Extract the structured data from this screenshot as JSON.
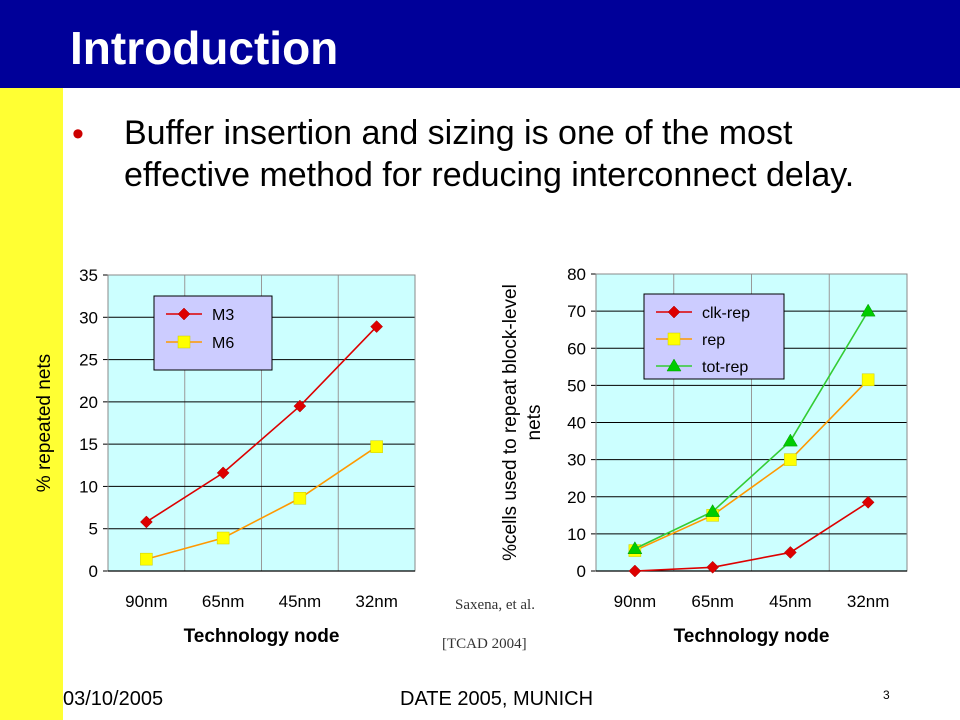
{
  "slide": {
    "title": "Introduction",
    "bullet": "Buffer insertion and sizing is one of the most effective method for reducing interconnect delay.",
    "citation_author": "Saxena, et al.",
    "citation_source": "[TCAD 2004]",
    "footer_date": "03/10/2005",
    "footer_event": "DATE 2005, MUNICH",
    "page_number": "3",
    "colors": {
      "header": "#000099",
      "sidebar": "#ffff33",
      "plot_bg": "#ccffff",
      "bullet": "#cc0000"
    }
  },
  "chart_data": [
    {
      "type": "line",
      "categories": [
        "90nm",
        "65nm",
        "45nm",
        "32nm"
      ],
      "xlabel": "Technology node",
      "ylabel": "% repeated nets",
      "ylim": [
        0,
        35
      ],
      "yticks": [
        0,
        5,
        10,
        15,
        20,
        25,
        30,
        35
      ],
      "grid": true,
      "legend": "top-left",
      "series": [
        {
          "name": "M3",
          "values": [
            5.8,
            11.6,
            19.5,
            28.9
          ],
          "color": "#dd0000",
          "line_color": "#dd0000",
          "marker": "diamond"
        },
        {
          "name": "M6",
          "values": [
            1.4,
            3.9,
            8.6,
            14.7
          ],
          "color": "#ffff00",
          "line_color": "#ff9900",
          "marker": "square"
        }
      ]
    },
    {
      "type": "line",
      "categories": [
        "90nm",
        "65nm",
        "45nm",
        "32nm"
      ],
      "xlabel": "Technology node",
      "ylabel": "%cells used to repeat block-level nets",
      "ylim": [
        0,
        80
      ],
      "yticks": [
        0,
        10,
        20,
        30,
        40,
        50,
        60,
        70,
        80
      ],
      "grid": true,
      "legend": "top-left",
      "series": [
        {
          "name": "clk-rep",
          "values": [
            0,
            1,
            5,
            18.5
          ],
          "color": "#dd0000",
          "line_color": "#dd0000",
          "marker": "diamond"
        },
        {
          "name": "rep",
          "values": [
            5.5,
            15,
            30,
            51.5
          ],
          "color": "#ffff00",
          "line_color": "#ff9900",
          "marker": "square"
        },
        {
          "name": "tot-rep",
          "values": [
            6,
            16,
            35,
            70
          ],
          "color": "#00cc00",
          "line_color": "#33cc33",
          "marker": "triangle"
        }
      ]
    }
  ]
}
